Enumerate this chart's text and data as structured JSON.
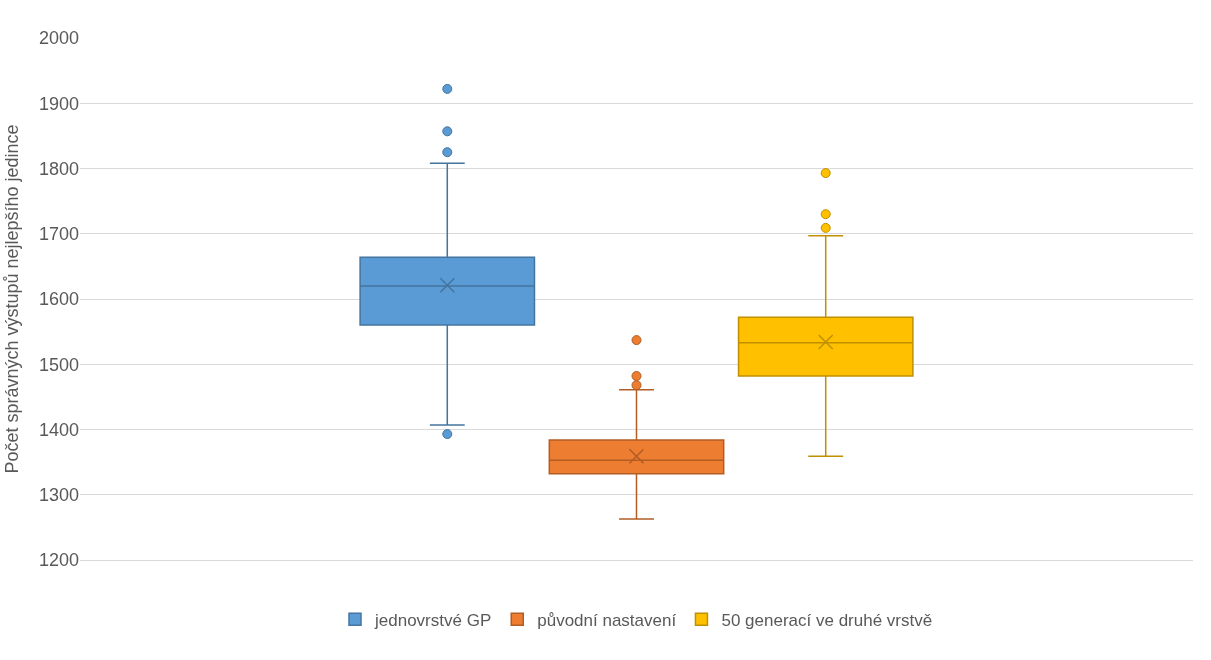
{
  "chart_data": {
    "type": "box",
    "ylabel": "Počet správných výstupů nejlepšího jedince",
    "categories": [
      null
    ],
    "series": [
      {
        "name": "jednovrstvé GP",
        "color": "#5b9bd5",
        "boxes": [
          {
            "low": 1407,
            "q1": 1560,
            "median": 1620,
            "q3": 1664,
            "high": 1808,
            "mean": 1621,
            "outliers": [
              1922,
              1857,
              1825,
              1393
            ]
          }
        ]
      },
      {
        "name": "původní nastavení",
        "color": "#ed7d31",
        "boxes": [
          {
            "low": 1263,
            "q1": 1332,
            "median": 1353,
            "q3": 1384,
            "high": 1461,
            "mean": 1359,
            "outliers": [
              1537,
              1482,
              1468
            ]
          }
        ]
      },
      {
        "name": "50 generací ve druhé vrstvě",
        "color": "#ffc000",
        "boxes": [
          {
            "low": 1359,
            "q1": 1482,
            "median": 1533,
            "q3": 1572,
            "high": 1697,
            "mean": 1534,
            "outliers": [
              1793,
              1730,
              1709
            ]
          }
        ]
      }
    ],
    "ylim": [
      1200,
      2000
    ],
    "yticks": [
      1200,
      1300,
      1400,
      1500,
      1600,
      1700,
      1800,
      1900,
      2000
    ],
    "grid": "y",
    "legend": "bottom",
    "tick_labels": "y"
  }
}
